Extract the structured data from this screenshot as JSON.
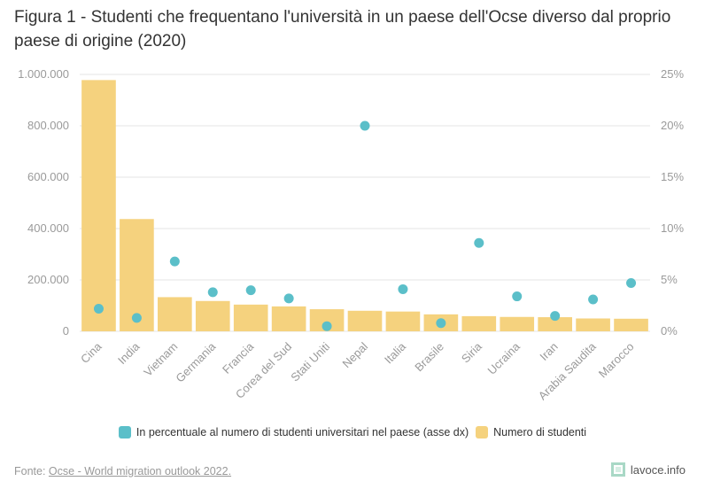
{
  "title": "Figura 1 - Studenti che frequentano l'università in un paese dell'Ocse diverso dal proprio paese di origine (2020)",
  "source": {
    "prefix": "Fonte: ",
    "link_text": "Ocse - World migration outlook 2022."
  },
  "brand": "lavoce.info",
  "colors": {
    "bar": "#f5d27e",
    "dot": "#5bbfc9",
    "grid": "#e6e6e6",
    "axis_text": "#9a9a9a"
  },
  "chart_data": {
    "type": "bar",
    "categories": [
      "Cina",
      "India",
      "Vietnam",
      "Germania",
      "Francia",
      "Corea del Sud",
      "Stati Uniti",
      "Nepal",
      "Italia",
      "Brasile",
      "Siria",
      "Ucraina",
      "Iran",
      "Arabia Saudita",
      "Marocco"
    ],
    "series": [
      {
        "name": "Numero di studenti",
        "type": "bar",
        "axis": "left",
        "values": [
          978000,
          437000,
          133000,
          118000,
          104000,
          97000,
          86000,
          80000,
          77000,
          66000,
          59000,
          56000,
          55000,
          50000,
          49000
        ]
      },
      {
        "name": "In percentuale al numero di studenti universitari nel paese (asse dx)",
        "type": "scatter",
        "axis": "right",
        "values": [
          2.2,
          1.3,
          6.8,
          3.8,
          4.0,
          3.2,
          0.5,
          20.0,
          4.1,
          0.8,
          8.6,
          3.4,
          1.5,
          3.1,
          4.7
        ]
      }
    ],
    "y_left": {
      "ticks": [
        0,
        200000,
        400000,
        600000,
        800000,
        1000000
      ],
      "tick_labels": [
        "0",
        "200.000",
        "400.000",
        "600.000",
        "800.000",
        "1.000.000"
      ],
      "ylim": [
        0,
        1000000
      ]
    },
    "y_right": {
      "ticks": [
        0,
        5,
        10,
        15,
        20,
        25
      ],
      "tick_labels": [
        "0%",
        "5%",
        "10%",
        "15%",
        "20%",
        "25%"
      ],
      "ylim": [
        0,
        25
      ]
    },
    "grid": true,
    "legend_position": "bottom"
  }
}
